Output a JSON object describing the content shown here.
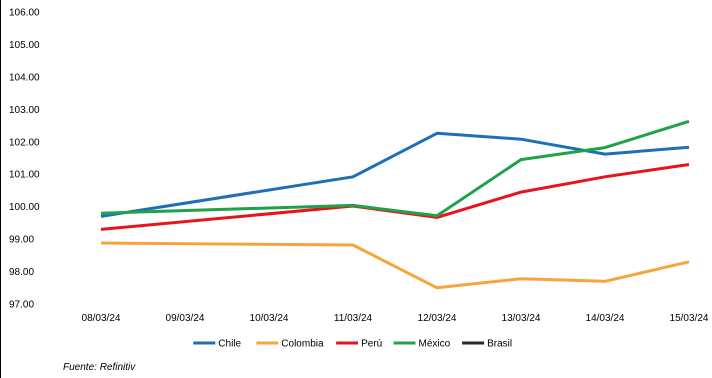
{
  "chart_data": {
    "type": "line",
    "title": "",
    "xlabel": "",
    "ylabel": "",
    "x": [
      "08/03/24",
      "09/03/24",
      "10/03/24",
      "11/03/24",
      "12/03/24",
      "13/03/24",
      "14/03/24",
      "15/03/24"
    ],
    "y_ticks": [
      "97.00",
      "98.00",
      "99.00",
      "100.00",
      "101.00",
      "102.00",
      "103.00",
      "104.00",
      "105.00",
      "106.00"
    ],
    "ylim": [
      97,
      106
    ],
    "grid": false,
    "legend_position": "bottom",
    "series": [
      {
        "name": "Chile",
        "color": "#1f6fb5",
        "points": [
          {
            "x": "08/03/24",
            "y": 99.7
          },
          {
            "x": "11/03/24",
            "y": 100.92
          },
          {
            "x": "12/03/24",
            "y": 102.26
          },
          {
            "x": "13/03/24",
            "y": 102.08
          },
          {
            "x": "14/03/24",
            "y": 101.62
          },
          {
            "x": "15/03/24",
            "y": 101.83
          }
        ]
      },
      {
        "name": "Colombia",
        "color": "#f5a53a",
        "points": [
          {
            "x": "08/03/24",
            "y": 98.88
          },
          {
            "x": "11/03/24",
            "y": 98.82
          },
          {
            "x": "12/03/24",
            "y": 97.5
          },
          {
            "x": "13/03/24",
            "y": 97.78
          },
          {
            "x": "14/03/24",
            "y": 97.7
          },
          {
            "x": "15/03/24",
            "y": 98.3
          }
        ]
      },
      {
        "name": "Perú",
        "color": "#e8141c",
        "points": [
          {
            "x": "08/03/24",
            "y": 99.3
          },
          {
            "x": "11/03/24",
            "y": 100.02
          },
          {
            "x": "12/03/24",
            "y": 99.67
          },
          {
            "x": "13/03/24",
            "y": 100.45
          },
          {
            "x": "14/03/24",
            "y": 100.92
          },
          {
            "x": "15/03/24",
            "y": 101.3
          }
        ]
      },
      {
        "name": "México",
        "color": "#1ea34a",
        "points": [
          {
            "x": "08/03/24",
            "y": 99.8
          },
          {
            "x": "11/03/24",
            "y": 100.04
          },
          {
            "x": "12/03/24",
            "y": 99.72
          },
          {
            "x": "13/03/24",
            "y": 101.45
          },
          {
            "x": "14/03/24",
            "y": 101.82
          },
          {
            "x": "15/03/24",
            "y": 102.63
          }
        ]
      },
      {
        "name": "Brasil",
        "color": "#262626",
        "points": []
      }
    ]
  },
  "source": "Fuente: Refinitiv"
}
